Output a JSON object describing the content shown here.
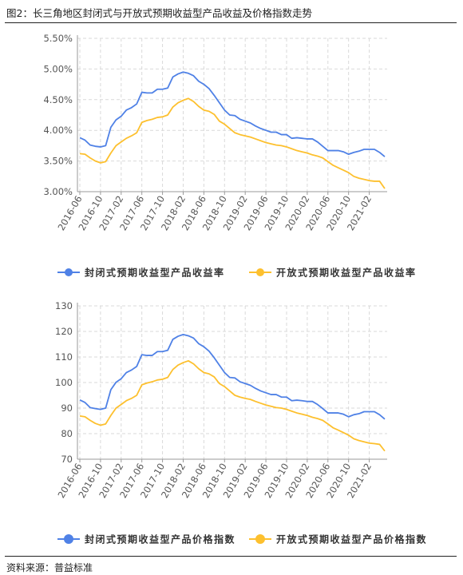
{
  "figure_title": "图2：长三角地区封闭式与开放式预期收益型产品收益及价格指数走势",
  "source_label": "资料来源：普益标准",
  "colors": {
    "closed": "#4F81E6",
    "open": "#FDC02E",
    "grid": "#d9d9d9",
    "axis": "#9a9a9a"
  },
  "x_tick_labels": [
    "2016-06",
    "2016-10",
    "2017-02",
    "2017-06",
    "2017-10",
    "2018-02",
    "2018-06",
    "2018-10",
    "2019-02",
    "2019-06",
    "2019-10",
    "2020-02",
    "2020-06",
    "2020-10",
    "2021-02"
  ],
  "chart_data": [
    {
      "type": "line",
      "title": "",
      "xlabel": "",
      "ylabel": "",
      "categories": [
        "2016-06",
        "2016-07",
        "2016-08",
        "2016-09",
        "2016-10",
        "2016-11",
        "2016-12",
        "2017-01",
        "2017-02",
        "2017-03",
        "2017-04",
        "2017-05",
        "2017-06",
        "2017-07",
        "2017-08",
        "2017-09",
        "2017-10",
        "2017-11",
        "2017-12",
        "2018-01",
        "2018-02",
        "2018-03",
        "2018-04",
        "2018-05",
        "2018-06",
        "2018-07",
        "2018-08",
        "2018-09",
        "2018-10",
        "2018-11",
        "2018-12",
        "2019-01",
        "2019-02",
        "2019-03",
        "2019-04",
        "2019-05",
        "2019-06",
        "2019-07",
        "2019-08",
        "2019-09",
        "2019-10",
        "2019-11",
        "2019-12",
        "2020-01",
        "2020-02",
        "2020-03",
        "2020-04",
        "2020-05",
        "2020-06",
        "2020-07",
        "2020-08",
        "2020-09",
        "2020-10",
        "2020-11",
        "2020-12",
        "2021-01",
        "2021-02",
        "2021-03",
        "2021-04",
        "2021-05"
      ],
      "ylim": [
        3.0,
        5.5
      ],
      "yticks": [
        3.0,
        3.5,
        4.0,
        4.5,
        5.0,
        5.5
      ],
      "ytick_labels": [
        "3.00%",
        "3.50%",
        "4.00%",
        "4.50%",
        "5.00%",
        "5.50%"
      ],
      "grid": true,
      "legend": "bottom",
      "series": [
        {
          "name": "封闭式预期收益型产品收益率",
          "color_key": "closed",
          "marker": "line",
          "values": [
            3.88,
            3.84,
            3.76,
            3.74,
            3.73,
            3.75,
            4.05,
            4.17,
            4.23,
            4.33,
            4.37,
            4.43,
            4.62,
            4.61,
            4.61,
            4.67,
            4.67,
            4.69,
            4.87,
            4.92,
            4.95,
            4.93,
            4.89,
            4.8,
            4.75,
            4.68,
            4.57,
            4.45,
            4.33,
            4.25,
            4.24,
            4.18,
            4.15,
            4.12,
            4.07,
            4.03,
            4.0,
            3.97,
            3.97,
            3.93,
            3.93,
            3.87,
            3.88,
            3.87,
            3.86,
            3.86,
            3.81,
            3.74,
            3.67,
            3.67,
            3.67,
            3.65,
            3.61,
            3.64,
            3.66,
            3.69,
            3.69,
            3.69,
            3.64,
            3.57
          ]
        },
        {
          "name": "开放式预期收益型产品收益率",
          "color_key": "open",
          "marker": "line",
          "values": [
            3.62,
            3.61,
            3.55,
            3.5,
            3.47,
            3.49,
            3.63,
            3.75,
            3.81,
            3.87,
            3.91,
            3.96,
            4.13,
            4.16,
            4.18,
            4.21,
            4.22,
            4.25,
            4.38,
            4.45,
            4.49,
            4.52,
            4.47,
            4.39,
            4.33,
            4.31,
            4.26,
            4.15,
            4.1,
            4.03,
            3.96,
            3.93,
            3.91,
            3.89,
            3.86,
            3.83,
            3.8,
            3.78,
            3.76,
            3.75,
            3.73,
            3.7,
            3.67,
            3.65,
            3.63,
            3.6,
            3.58,
            3.55,
            3.49,
            3.43,
            3.39,
            3.35,
            3.31,
            3.25,
            3.22,
            3.2,
            3.18,
            3.17,
            3.17,
            3.05
          ]
        }
      ]
    },
    {
      "type": "line",
      "title": "",
      "xlabel": "",
      "ylabel": "",
      "categories": [
        "2016-06",
        "2016-07",
        "2016-08",
        "2016-09",
        "2016-10",
        "2016-11",
        "2016-12",
        "2017-01",
        "2017-02",
        "2017-03",
        "2017-04",
        "2017-05",
        "2017-06",
        "2017-07",
        "2017-08",
        "2017-09",
        "2017-10",
        "2017-11",
        "2017-12",
        "2018-01",
        "2018-02",
        "2018-03",
        "2018-04",
        "2018-05",
        "2018-06",
        "2018-07",
        "2018-08",
        "2018-09",
        "2018-10",
        "2018-11",
        "2018-12",
        "2019-01",
        "2019-02",
        "2019-03",
        "2019-04",
        "2019-05",
        "2019-06",
        "2019-07",
        "2019-08",
        "2019-09",
        "2019-10",
        "2019-11",
        "2019-12",
        "2020-01",
        "2020-02",
        "2020-03",
        "2020-04",
        "2020-05",
        "2020-06",
        "2020-07",
        "2020-08",
        "2020-09",
        "2020-10",
        "2020-11",
        "2020-12",
        "2021-01",
        "2021-02",
        "2021-03",
        "2021-04",
        "2021-05"
      ],
      "ylim": [
        70,
        130
      ],
      "yticks": [
        70,
        80,
        90,
        100,
        110,
        120,
        130
      ],
      "ytick_labels": [
        "70",
        "80",
        "90",
        "100",
        "110",
        "120",
        "130"
      ],
      "grid": true,
      "legend": "bottom",
      "series": [
        {
          "name": "封闭式预期收益型产品价格指数",
          "color_key": "closed",
          "marker": "dot",
          "values": [
            93.2,
            92.2,
            90.2,
            89.8,
            89.5,
            90.0,
            97.2,
            100.1,
            101.5,
            103.9,
            104.9,
            106.3,
            110.9,
            110.6,
            110.6,
            112.1,
            112.1,
            112.6,
            116.9,
            118.1,
            118.8,
            118.3,
            117.4,
            115.2,
            114.0,
            112.3,
            109.7,
            106.8,
            103.9,
            102.0,
            101.8,
            100.3,
            99.6,
            98.9,
            97.7,
            96.7,
            96.0,
            95.3,
            95.3,
            94.3,
            94.3,
            92.9,
            93.1,
            92.9,
            92.6,
            92.6,
            91.4,
            89.8,
            88.1,
            88.1,
            88.1,
            87.6,
            86.6,
            87.4,
            87.8,
            88.6,
            88.6,
            88.6,
            87.4,
            85.7
          ]
        },
        {
          "name": "开放式预期收益型产品价格指数",
          "color_key": "open",
          "marker": "dot",
          "values": [
            86.9,
            86.6,
            85.2,
            84.0,
            83.3,
            83.8,
            87.1,
            90.0,
            91.4,
            92.9,
            93.8,
            95.0,
            99.1,
            99.8,
            100.3,
            101.0,
            101.3,
            102.0,
            105.1,
            106.8,
            107.8,
            108.5,
            107.3,
            105.4,
            103.9,
            103.4,
            102.2,
            99.6,
            98.4,
            96.7,
            95.0,
            94.3,
            93.8,
            93.4,
            92.6,
            91.9,
            91.2,
            90.7,
            90.2,
            90.0,
            89.5,
            88.8,
            88.1,
            87.6,
            87.1,
            86.4,
            85.9,
            85.2,
            83.8,
            82.3,
            81.4,
            80.4,
            79.4,
            78.0,
            77.3,
            76.8,
            76.3,
            76.1,
            75.8,
            73.2
          ]
        }
      ]
    }
  ]
}
